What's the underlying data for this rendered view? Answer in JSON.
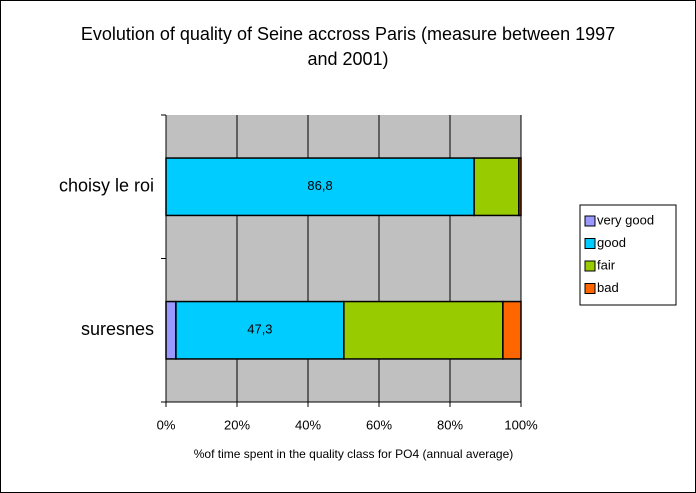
{
  "chart_data": {
    "type": "stacked-barh",
    "title": "Evolution of quality of Seine accross Paris (measure between 1997 and 2001)",
    "x_label": "%of time spent in the quality class for PO4 (annual average)",
    "categories": [
      "suresnes",
      "choisy le roi"
    ],
    "series": [
      {
        "name": "very good",
        "color": "#9999ff",
        "values": [
          2.8,
          0
        ]
      },
      {
        "name": "good",
        "color": "#00ccff",
        "values": [
          47.3,
          86.8
        ],
        "value_labels": [
          "47,3",
          "86,8"
        ]
      },
      {
        "name": "fair",
        "color": "#99cc00",
        "values": [
          44.8,
          12.6
        ]
      },
      {
        "name": "bad",
        "color": "#ff6600",
        "values": [
          5.1,
          0.6
        ]
      }
    ],
    "xlim": [
      0,
      100
    ],
    "xticks": [
      {
        "value": 0,
        "label": "0%"
      },
      {
        "value": 20,
        "label": "20%"
      },
      {
        "value": 40,
        "label": "40%"
      },
      {
        "value": 60,
        "label": "60%"
      },
      {
        "value": 80,
        "label": "80%"
      },
      {
        "value": 100,
        "label": "100%"
      }
    ],
    "grid": true,
    "legend": "right",
    "plot_background": "#c0c0c0"
  }
}
